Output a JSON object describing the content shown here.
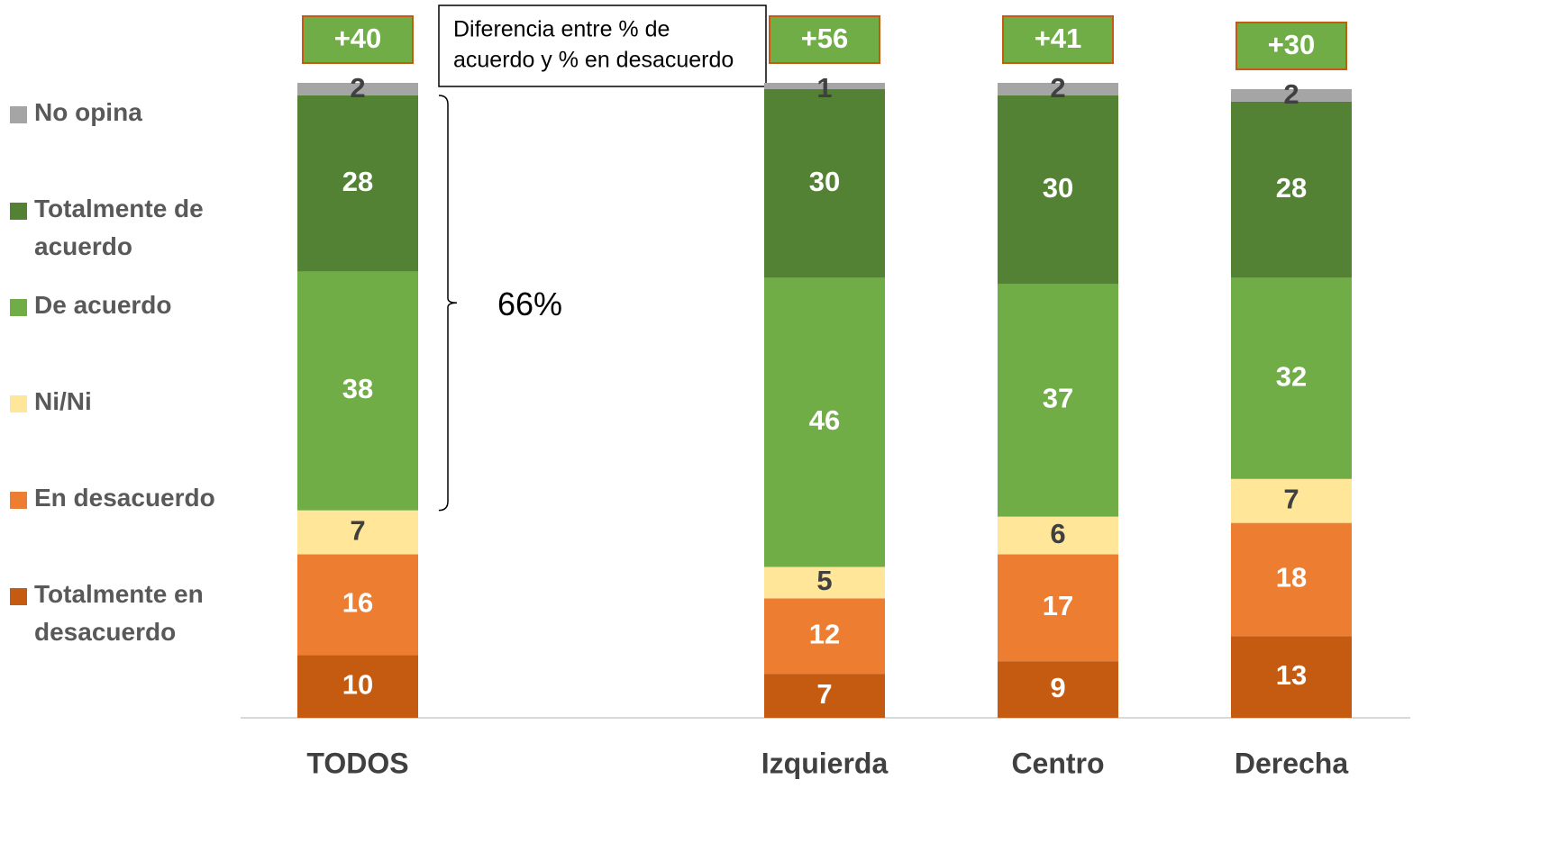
{
  "chart_data": {
    "type": "stacked_bar",
    "categories": [
      "TODOS",
      null,
      "Izquierda",
      "Centro",
      "Derecha"
    ],
    "series": [
      {
        "name": "Totalmente en desacuerdo",
        "color": "#c55a11",
        "values": [
          10,
          null,
          7,
          9,
          13
        ]
      },
      {
        "name": "En desacuerdo",
        "color": "#ed7d31",
        "values": [
          16,
          null,
          12,
          17,
          18
        ]
      },
      {
        "name": "Ni/Ni",
        "color": "#ffe699",
        "values": [
          7,
          null,
          5,
          6,
          7
        ]
      },
      {
        "name": "De acuerdo",
        "color": "#70ad47",
        "values": [
          38,
          null,
          46,
          37,
          32
        ]
      },
      {
        "name": "Totalmente de acuerdo",
        "color": "#548235",
        "values": [
          28,
          null,
          30,
          30,
          28
        ]
      },
      {
        "name": "No opina",
        "color": "#a5a5a5",
        "values": [
          2,
          null,
          1,
          2,
          2
        ]
      }
    ],
    "ylim": [
      0,
      101
    ],
    "differences": {
      "values": [
        40,
        null,
        56,
        41,
        30
      ],
      "value_labels": [
        "+40",
        null,
        "+56",
        "+41",
        "+30"
      ],
      "color": "#70ad47"
    },
    "annotation_lines": [
      "Diferencia entre % de",
      "acuerdo y % en desacuerdo"
    ],
    "bracket_label": "66%"
  }
}
